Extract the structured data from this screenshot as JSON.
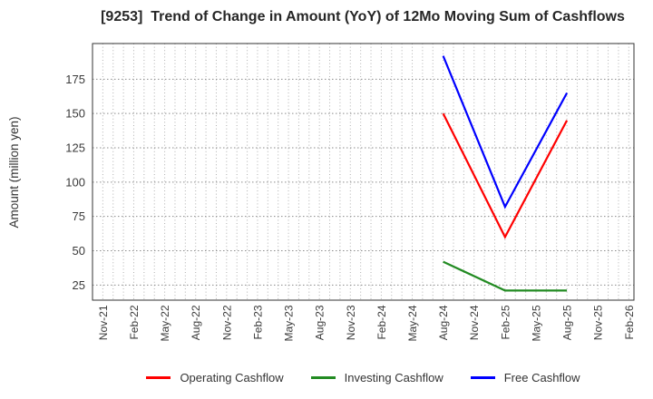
{
  "chart_data": {
    "type": "line",
    "title": "[9253]  Trend of Change in Amount (YoY) of 12Mo Moving Sum of Cashflows",
    "ylabel": "Amount (million yen)",
    "yticks": [
      25,
      50,
      75,
      100,
      125,
      150,
      175
    ],
    "ylim": [
      14,
      201
    ],
    "xlim_months": [
      -1,
      51.5
    ],
    "x_tick_labels": [
      "Nov-21",
      "Feb-22",
      "May-22",
      "Aug-22",
      "Nov-22",
      "Feb-23",
      "May-23",
      "Aug-23",
      "Nov-23",
      "Feb-24",
      "May-24",
      "Aug-24",
      "Nov-24",
      "Feb-25",
      "May-25",
      "Aug-25",
      "Nov-25",
      "Feb-26"
    ],
    "x_tick_step_months": 3,
    "minor_vertical_grid_every_month": true,
    "grid": true,
    "legend_position": "bottom-center",
    "colors": {
      "operating": "#ff0000",
      "investing": "#228b22",
      "free": "#0000ff",
      "grid_major": "#8c8c8c",
      "grid_minor": "#b0b0b0",
      "axis_border": "#333333",
      "tick_text": "#3a3a3a"
    },
    "series": [
      {
        "name": "Operating Cashflow",
        "color": "#ff0000",
        "points": [
          {
            "month": "Aug-24",
            "value": 150
          },
          {
            "month": "Feb-25",
            "value": 60
          },
          {
            "month": "Aug-25",
            "value": 145
          }
        ]
      },
      {
        "name": "Investing Cashflow",
        "color": "#228b22",
        "points": [
          {
            "month": "Aug-24",
            "value": 42
          },
          {
            "month": "Feb-25",
            "value": 21
          },
          {
            "month": "May-25",
            "value": 21
          },
          {
            "month": "Aug-25",
            "value": 21
          }
        ]
      },
      {
        "name": "Free Cashflow",
        "color": "#0000ff",
        "points": [
          {
            "month": "Aug-24",
            "value": 192
          },
          {
            "month": "Feb-25",
            "value": 82
          },
          {
            "month": "Aug-25",
            "value": 165
          }
        ]
      }
    ]
  }
}
